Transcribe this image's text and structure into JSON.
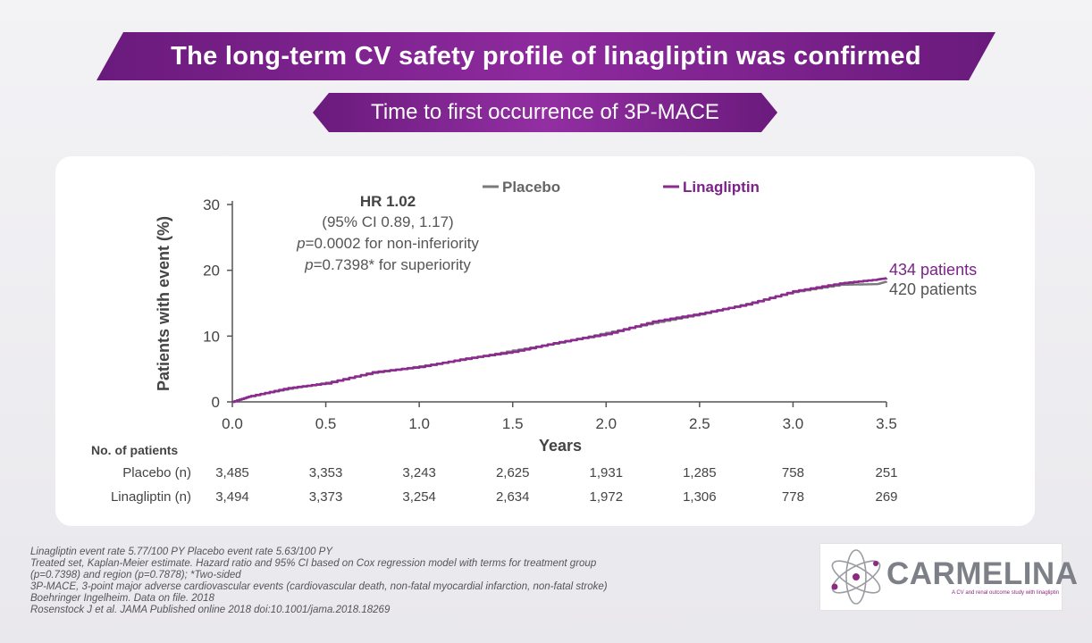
{
  "header": {
    "title": "The long-term CV safety profile of linagliptin was confirmed",
    "subtitle": "Time to first occurrence of 3P-MACE"
  },
  "colors": {
    "brand_purple": "#7b2288",
    "placebo": "#7a7a7a",
    "linagliptin": "#8b2a8f"
  },
  "chart_data": {
    "type": "line",
    "title": "Time to first occurrence of 3P-MACE",
    "xlabel": "Years",
    "ylabel": "Patients with event (%)",
    "xlim": [
      0,
      3.5
    ],
    "ylim": [
      0,
      30
    ],
    "x_ticks": [
      "0.0",
      "0.5",
      "1.0",
      "1.5",
      "2.0",
      "2.5",
      "3.0",
      "3.5"
    ],
    "y_ticks": [
      "0",
      "10",
      "20",
      "30"
    ],
    "legend": [
      "Placebo",
      "Linagliptin"
    ],
    "legend_position": "top-center",
    "series": [
      {
        "name": "Placebo",
        "x": [
          0,
          0.1,
          0.3,
          0.5,
          0.75,
          1.0,
          1.25,
          1.5,
          1.75,
          2.0,
          2.25,
          2.5,
          2.75,
          3.0,
          3.25,
          3.45,
          3.5
        ],
        "values": [
          0,
          0.9,
          2.0,
          2.9,
          4.4,
          5.4,
          6.5,
          7.8,
          9.0,
          10.5,
          12.0,
          13.3,
          14.9,
          16.7,
          17.8,
          17.9,
          18.3
        ],
        "end_label": "420 patients"
      },
      {
        "name": "Linagliptin",
        "x": [
          0,
          0.1,
          0.3,
          0.5,
          0.75,
          1.0,
          1.25,
          1.5,
          1.75,
          2.0,
          2.25,
          2.5,
          2.75,
          3.0,
          3.25,
          3.45,
          3.5
        ],
        "values": [
          0,
          0.9,
          2.1,
          2.8,
          4.5,
          5.3,
          6.6,
          7.6,
          9.1,
          10.3,
          12.2,
          13.4,
          14.8,
          16.8,
          18.0,
          18.6,
          18.8
        ],
        "end_label": "434 patients"
      }
    ],
    "annotation": {
      "hr": "HR 1.02",
      "ci": "(95% CI 0.89, 1.17)",
      "p_noninf_symbol": "p",
      "p_noninf_text": "=0.0002 for non-inferiority",
      "p_sup_symbol": "p",
      "p_sup_text": "=0.7398* for superiority"
    },
    "risk_table": {
      "header": "No. of patients",
      "rows": [
        {
          "label": "Placebo (n)",
          "values": [
            "3,485",
            "3,353",
            "3,243",
            "2,625",
            "1,931",
            "1,285",
            "758",
            "251"
          ]
        },
        {
          "label": "Linagliptin (n)",
          "values": [
            "3,494",
            "3,373",
            "3,254",
            "2,634",
            "1,972",
            "1,306",
            "778",
            "269"
          ]
        }
      ]
    }
  },
  "footnotes": [
    "Linagliptin event rate 5.77/100 PY Placebo event rate 5.63/100 PY",
    "Treated set, Kaplan-Meier estimate. Hazard ratio and 95% CI based on Cox regression model with terms for treatment group",
    "(p=0.7398) and region (p=0.7878); *Two-sided",
    "3P-MACE, 3-point major adverse cardiovascular events (cardiovascular death, non-fatal myocardial infarction, non-fatal stroke)",
    "Boehringer Ingelheim. Data on file. 2018",
    "Rosenstock J et al. JAMA Published online 2018 doi:10.1001/jama.2018.18269"
  ],
  "logo": {
    "name": "CARMELINA",
    "tagline": "A CV and renal outcome study with linagliptin"
  }
}
